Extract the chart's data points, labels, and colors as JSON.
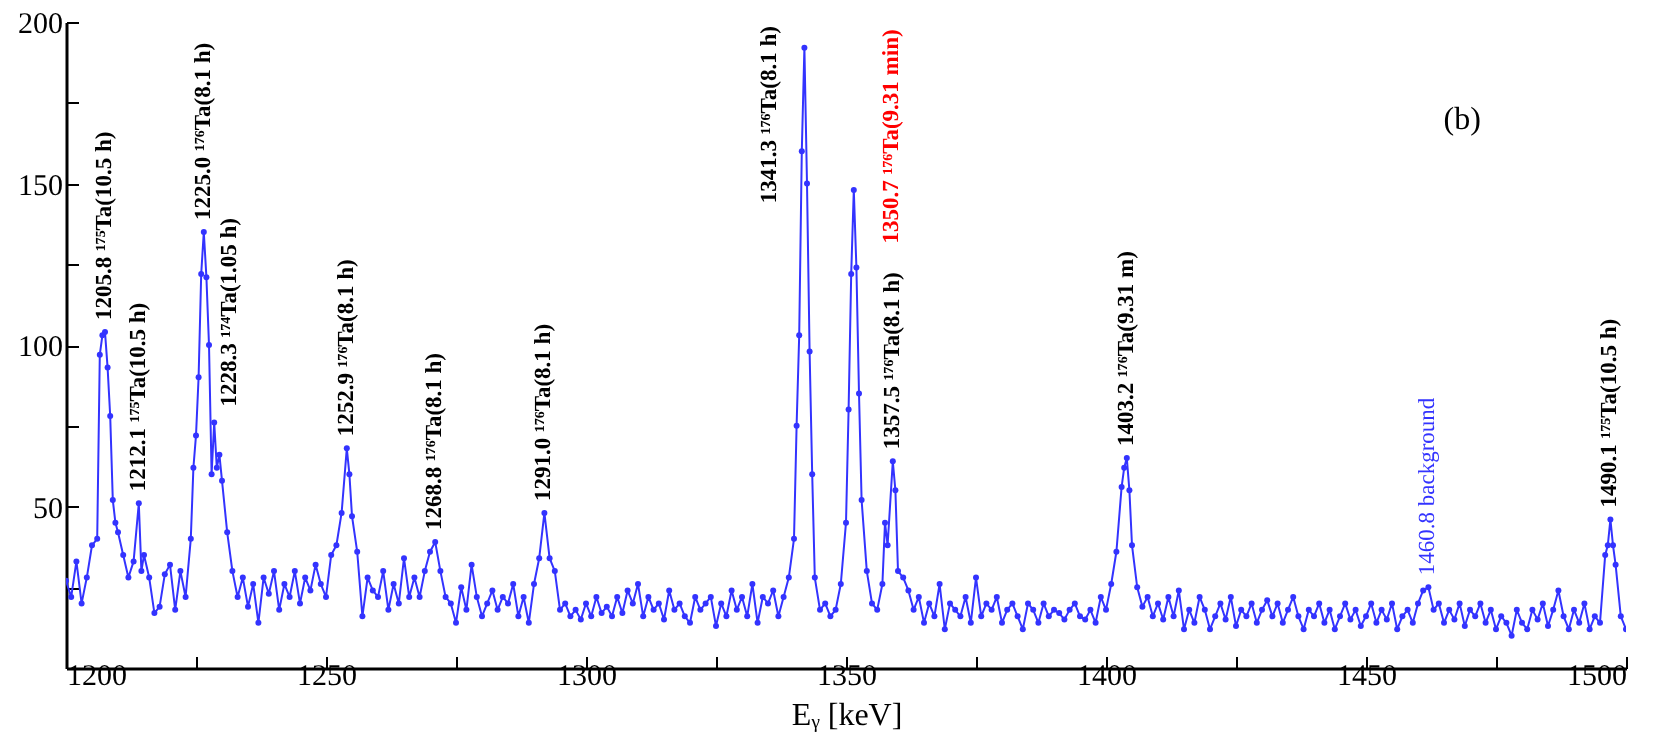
{
  "chart_data": {
    "type": "line",
    "xlabel": "Eᵧ [keV]",
    "xlim": [
      1200,
      1500
    ],
    "xticks": [
      1200,
      {
        "value": 1225,
        "label": null
      },
      1250,
      {
        "value": 1275,
        "label": null
      },
      1300,
      {
        "value": 1325,
        "label": null
      },
      1350,
      {
        "value": 1375,
        "label": null
      },
      1400,
      {
        "value": 1425,
        "label": null
      },
      1450,
      {
        "value": 1475,
        "label": null
      },
      1500
    ],
    "ylim": [
      0,
      200
    ],
    "yticks": [
      {
        "value": 25,
        "label": null
      },
      50,
      {
        "value": 75,
        "label": null
      },
      100,
      {
        "value": 125,
        "label": null
      },
      150,
      {
        "value": 175,
        "label": null
      },
      200
    ],
    "grid": false,
    "legend": false,
    "marker": "circle",
    "line_style": "solid",
    "series": [
      {
        "color": "#3333ff",
        "x": [
          1200,
          1201,
          1202,
          1203,
          1204,
          1205,
          1206,
          1206.5,
          1207,
          1207.5,
          1208,
          1208.5,
          1209,
          1209.5,
          1210,
          1211,
          1212,
          1213,
          1214,
          1214.5,
          1215,
          1216,
          1217,
          1218,
          1219,
          1220,
          1221,
          1222,
          1223,
          1224,
          1224.5,
          1225,
          1225.5,
          1226,
          1226.5,
          1227,
          1227.5,
          1228,
          1228.5,
          1229,
          1229.5,
          1230,
          1231,
          1232,
          1233,
          1234,
          1235,
          1236,
          1237,
          1238,
          1239,
          1240,
          1241,
          1242,
          1243,
          1244,
          1245,
          1246,
          1247,
          1248,
          1249,
          1250,
          1251,
          1252,
          1253,
          1254,
          1254.5,
          1255,
          1256,
          1257,
          1258,
          1259,
          1260,
          1261,
          1262,
          1263,
          1264,
          1265,
          1266,
          1267,
          1268,
          1269,
          1270,
          1271,
          1272,
          1273,
          1274,
          1275,
          1276,
          1277,
          1278,
          1279,
          1280,
          1281,
          1282,
          1283,
          1284,
          1285,
          1286,
          1287,
          1288,
          1289,
          1290,
          1291,
          1292,
          1293,
          1294,
          1295,
          1296,
          1297,
          1298,
          1299,
          1300,
          1301,
          1302,
          1303,
          1304,
          1305,
          1306,
          1307,
          1308,
          1309,
          1310,
          1311,
          1312,
          1313,
          1314,
          1315,
          1316,
          1317,
          1318,
          1319,
          1320,
          1321,
          1322,
          1323,
          1324,
          1325,
          1326,
          1327,
          1328,
          1329,
          1330,
          1331,
          1332,
          1333,
          1334,
          1335,
          1336,
          1337,
          1338,
          1339,
          1340,
          1340.5,
          1341,
          1341.5,
          1342,
          1342.5,
          1343,
          1343.5,
          1344,
          1345,
          1346,
          1347,
          1348,
          1349,
          1350,
          1350.5,
          1351,
          1351.5,
          1352,
          1352.5,
          1353,
          1354,
          1355,
          1356,
          1357,
          1357.5,
          1358,
          1359,
          1359.5,
          1360,
          1361,
          1362,
          1363,
          1364,
          1365,
          1366,
          1367,
          1368,
          1369,
          1370,
          1371,
          1372,
          1373,
          1374,
          1375,
          1376,
          1377,
          1378,
          1379,
          1380,
          1381,
          1382,
          1383,
          1384,
          1385,
          1386,
          1387,
          1388,
          1389,
          1390,
          1391,
          1392,
          1393,
          1394,
          1395,
          1396,
          1397,
          1398,
          1399,
          1400,
          1401,
          1402,
          1403,
          1403.5,
          1404,
          1404.5,
          1405,
          1406,
          1407,
          1408,
          1409,
          1410,
          1411,
          1412,
          1413,
          1414,
          1415,
          1416,
          1417,
          1418,
          1419,
          1420,
          1421,
          1422,
          1423,
          1424,
          1425,
          1426,
          1427,
          1428,
          1429,
          1430,
          1431,
          1432,
          1433,
          1434,
          1435,
          1436,
          1437,
          1438,
          1439,
          1440,
          1441,
          1442,
          1443,
          1444,
          1445,
          1446,
          1447,
          1448,
          1449,
          1450,
          1451,
          1452,
          1453,
          1454,
          1455,
          1456,
          1457,
          1458,
          1459,
          1460,
          1461,
          1462,
          1463,
          1464,
          1465,
          1466,
          1467,
          1468,
          1469,
          1470,
          1471,
          1472,
          1473,
          1474,
          1475,
          1476,
          1477,
          1478,
          1479,
          1480,
          1481,
          1482,
          1483,
          1484,
          1485,
          1486,
          1487,
          1488,
          1489,
          1490,
          1491,
          1492,
          1493,
          1494,
          1495,
          1496,
          1496.5,
          1497,
          1497.5,
          1498,
          1499,
          1500
        ],
        "values": [
          27,
          22,
          33,
          20,
          28,
          38,
          40,
          97,
          103,
          104,
          93,
          78,
          52,
          45,
          42,
          35,
          28,
          33,
          51,
          30,
          35,
          28,
          17,
          19,
          29,
          32,
          18,
          30,
          22,
          40,
          62,
          72,
          90,
          122,
          135,
          121,
          100,
          60,
          76,
          62,
          66,
          58,
          42,
          30,
          22,
          28,
          19,
          26,
          14,
          28,
          23,
          30,
          18,
          26,
          22,
          30,
          20,
          28,
          24,
          32,
          26,
          22,
          35,
          38,
          48,
          68,
          60,
          47,
          36,
          16,
          28,
          24,
          22,
          30,
          18,
          26,
          20,
          34,
          22,
          28,
          22,
          30,
          36,
          39,
          30,
          22,
          20,
          14,
          25,
          18,
          32,
          22,
          16,
          20,
          24,
          18,
          22,
          20,
          26,
          16,
          22,
          14,
          26,
          34,
          48,
          34,
          30,
          18,
          20,
          16,
          18,
          15,
          20,
          16,
          22,
          17,
          19,
          16,
          22,
          17,
          24,
          20,
          26,
          16,
          22,
          18,
          20,
          15,
          24,
          18,
          20,
          16,
          14,
          22,
          18,
          20,
          22,
          13,
          20,
          16,
          24,
          18,
          22,
          16,
          26,
          14,
          22,
          20,
          24,
          16,
          22,
          28,
          40,
          75,
          103,
          160,
          192,
          150,
          98,
          60,
          28,
          18,
          20,
          16,
          18,
          26,
          45,
          80,
          122,
          148,
          124,
          85,
          52,
          30,
          20,
          18,
          26,
          45,
          38,
          64,
          55,
          30,
          28,
          24,
          18,
          22,
          14,
          20,
          16,
          26,
          12,
          20,
          18,
          16,
          22,
          14,
          28,
          16,
          20,
          18,
          22,
          14,
          18,
          20,
          16,
          12,
          20,
          18,
          14,
          20,
          16,
          18,
          17,
          15,
          18,
          20,
          16,
          15,
          18,
          14,
          22,
          18,
          26,
          36,
          56,
          62,
          65,
          55,
          38,
          25,
          19,
          22,
          16,
          20,
          15,
          22,
          16,
          24,
          12,
          18,
          14,
          22,
          18,
          12,
          16,
          20,
          15,
          22,
          13,
          18,
          16,
          20,
          14,
          18,
          21,
          16,
          20,
          14,
          18,
          22,
          16,
          12,
          18,
          16,
          20,
          14,
          18,
          12,
          16,
          20,
          15,
          18,
          13,
          16,
          20,
          14,
          18,
          15,
          20,
          12,
          16,
          18,
          14,
          20,
          24,
          25,
          18,
          20,
          14,
          18,
          15,
          20,
          13,
          18,
          16,
          20,
          14,
          18,
          12,
          16,
          14,
          10,
          18,
          14,
          12,
          18,
          15,
          20,
          13,
          18,
          24,
          16,
          12,
          18,
          14,
          20,
          12,
          16,
          14,
          35,
          38,
          46,
          38,
          32,
          16,
          12
        ]
      }
    ],
    "annotations": [
      {
        "text": "1205.8 ¹⁷⁵Ta(10.5 h)",
        "x": 1207.5,
        "y": 104
      },
      {
        "text": "1212.1 ¹⁷⁵Ta(10.5 h)",
        "x": 1214,
        "y": 51
      },
      {
        "text": "1225.0 ¹⁷⁶Ta(8.1 h)",
        "x": 1226.5,
        "y": 135
      },
      {
        "text": "1228.3 ¹⁷⁴Ta(1.05 h)",
        "x": 1228.5,
        "y": 76
      },
      {
        "text": "1252.9 ¹⁷⁶Ta(8.1 h)",
        "x": 1254,
        "y": 68
      },
      {
        "text": "1268.8 ¹⁷⁶Ta(8.1 h)",
        "x": 1271,
        "y": 39
      },
      {
        "text": "1291.0 ¹⁷⁶Ta(8.1 h)",
        "x": 1292,
        "y": 48
      },
      {
        "text": "1341.3 ¹⁷⁶Ta(8.1 h)",
        "x": 1341.5,
        "y": 160
      },
      {
        "text": "1350.7 ¹⁷⁶Ta(9.31 min)",
        "x": 1352,
        "y": 124
      },
      {
        "text": "1357.5 ¹⁷⁶Ta(8.1 h)",
        "x": 1359,
        "y": 64
      },
      {
        "text": "1403.2 ¹⁷⁶Ta(9.31 m)",
        "x": 1404,
        "y": 65
      },
      {
        "text": "1460.8 background",
        "x": 1462,
        "y": 25
      },
      {
        "text": "1490.1 ¹⁷⁵Ta(10.5 h)",
        "x": 1497,
        "y": 46
      },
      "(b)"
    ]
  }
}
